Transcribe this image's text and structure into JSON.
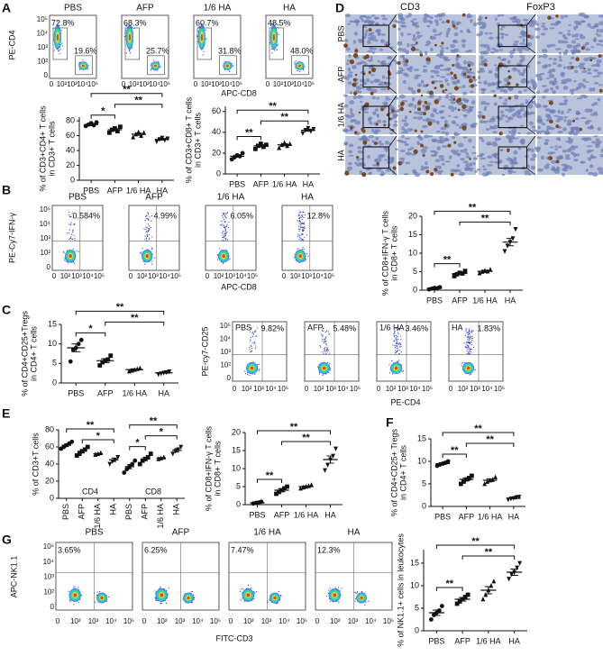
{
  "letters": [
    "A",
    "B",
    "C",
    "D",
    "E",
    "F",
    "G"
  ],
  "flow": {
    "A": {
      "ylabel": "PE-CD4",
      "xlabel": "APC-CD8",
      "xticks": [
        "0",
        "10²",
        "10³",
        "10⁴",
        "10⁵"
      ],
      "yticks": [
        "0",
        "10²",
        "10³",
        "10⁴",
        "10⁵"
      ],
      "plots": [
        {
          "title": "PBS",
          "gates": [
            "72.8%",
            "19.6%"
          ]
        },
        {
          "title": "AFP",
          "gates": [
            "68.3%",
            "25.7%"
          ]
        },
        {
          "title": "1/6 HA",
          "gates": [
            "60.7%",
            "31.8%"
          ]
        },
        {
          "title": "HA",
          "gates": [
            "48.5%",
            "48.0%"
          ]
        }
      ]
    },
    "B": {
      "ylabel": "PE-Cy7-IFN-γ",
      "xlabel": "APC-CD8",
      "xticks": [
        "0",
        "10²",
        "10³",
        "10⁴",
        "10⁵"
      ],
      "yticks": [
        "0",
        "10²",
        "10³",
        "10⁴",
        "10⁵"
      ],
      "plots": [
        {
          "title": "PBS",
          "gates": [
            "0.584%"
          ]
        },
        {
          "title": "AFP",
          "gates": [
            "4.99%"
          ]
        },
        {
          "title": "1/6 HA",
          "gates": [
            "6.05%"
          ]
        },
        {
          "title": "HA",
          "gates": [
            "12.8%"
          ]
        }
      ]
    },
    "C": {
      "ylabel": "PE-cy7-CD25",
      "xlabel": "PE-CD4",
      "xticks": [
        "0",
        "10²",
        "10³",
        "10⁴",
        "10⁵"
      ],
      "yticks": [
        "0",
        "10²",
        "10³",
        "10⁴",
        "10⁵"
      ],
      "plots": [
        {
          "title": "PBS",
          "gates": [
            "9.82%"
          ]
        },
        {
          "title": "AFP",
          "gates": [
            "5.48%"
          ]
        },
        {
          "title": "1/6 HA",
          "gates": [
            "3.46%"
          ]
        },
        {
          "title": "HA",
          "gates": [
            "1.83%"
          ]
        }
      ]
    },
    "G": {
      "ylabel": "APC-NK1.1",
      "xlabel": "FITC-CD3",
      "xticks": [
        "0",
        "10²",
        "10³",
        "10⁴",
        "10⁵"
      ],
      "yticks": [
        "0",
        "10²",
        "10³",
        "10⁴",
        "10⁵"
      ],
      "plots": [
        {
          "title": "PBS",
          "gates": [
            "3.65%"
          ]
        },
        {
          "title": "AFP",
          "gates": [
            "6.25%"
          ]
        },
        {
          "title": "1/6 HA",
          "gates": [
            "7.47%"
          ]
        },
        {
          "title": "HA",
          "gates": [
            "12.3%"
          ]
        }
      ]
    }
  },
  "histology": {
    "columns": [
      "CD3",
      "FoxP3"
    ],
    "rows": [
      "PBS",
      "AFP",
      "1/6 HA",
      "HA"
    ]
  },
  "chart_data": [
    {
      "type": "dot",
      "ylabel": [
        "% of CD3+CD4+ T cells",
        "in CD3+ T cells"
      ],
      "categories": [
        "PBS",
        "AFP",
        "1/6 HA",
        "HA"
      ],
      "values": [
        75,
        68,
        62,
        55
      ],
      "errors": [
        1.5,
        1.5,
        1.5,
        1
      ],
      "points": [
        [
          73,
          75,
          77,
          74,
          78
        ],
        [
          64,
          68,
          70,
          66,
          72
        ],
        [
          58,
          62,
          65,
          60,
          64
        ],
        [
          52,
          55,
          57,
          54,
          56
        ]
      ],
      "ylim": [
        0,
        85
      ],
      "yticks": [
        0,
        20,
        40,
        60,
        80
      ],
      "brackets": [
        {
          "label": "*",
          "between": [
            0,
            1
          ]
        },
        {
          "label": "**",
          "between": [
            1,
            3
          ]
        },
        {
          "label": "**",
          "between": [
            0,
            3
          ]
        }
      ]
    },
    {
      "type": "dot",
      "ylabel": [
        "% of CD3+CD8+ T cells",
        "in CD3+ T cells"
      ],
      "categories": [
        "PBS",
        "AFP",
        "1/6 HA",
        "HA"
      ],
      "values": [
        17,
        27,
        28,
        42
      ],
      "errors": [
        1,
        1,
        1,
        1
      ],
      "points": [
        [
          14,
          16,
          18,
          17,
          20
        ],
        [
          24,
          27,
          29,
          26,
          28
        ],
        [
          25,
          28,
          30,
          27,
          29
        ],
        [
          39,
          42,
          44,
          41,
          43
        ]
      ],
      "ylim": [
        0,
        65
      ],
      "yticks": [
        0,
        20,
        40,
        60
      ],
      "brackets": [
        {
          "label": "**",
          "between": [
            0,
            1
          ]
        },
        {
          "label": "**",
          "between": [
            1,
            3
          ]
        },
        {
          "label": "**",
          "between": [
            0,
            3
          ]
        }
      ]
    },
    {
      "type": "dot",
      "ylabel": [
        "% of CD8+IFN-γ T cells",
        "in CD8+ T cells"
      ],
      "categories": [
        "PBS",
        "AFP",
        "1/6 HA",
        "HA"
      ],
      "values": [
        0.5,
        4.5,
        5.1,
        13
      ],
      "errors": [
        0.1,
        0.3,
        0.3,
        1
      ],
      "points": [
        [
          0.2,
          0.4,
          0.6,
          0.5,
          0.8
        ],
        [
          3.8,
          4.3,
          4.7,
          4.5,
          5.2
        ],
        [
          4.6,
          5,
          5.3,
          5.1,
          5.6
        ],
        [
          10.5,
          12,
          13,
          14,
          16.5
        ]
      ],
      "ylim": [
        0,
        20
      ],
      "yticks": [
        0,
        5,
        10,
        15,
        20
      ],
      "brackets": [
        {
          "label": "**",
          "between": [
            0,
            1
          ]
        },
        {
          "label": "**",
          "between": [
            1,
            3
          ]
        },
        {
          "label": "**",
          "between": [
            0,
            3
          ]
        }
      ]
    },
    {
      "type": "dot",
      "ylabel": [
        "% of CD4+CD25+Tregs",
        "in CD4+ T cells"
      ],
      "categories": [
        "PBS",
        "AFP",
        "1/6 HA",
        "HA"
      ],
      "values": [
        9,
        5.7,
        3.4,
        2.6
      ],
      "errors": [
        1,
        0.5,
        0.2,
        0.1
      ],
      "points": [
        [
          5.5,
          8.5,
          9,
          10,
          11
        ],
        [
          4.5,
          5.3,
          5.8,
          6,
          7
        ],
        [
          3,
          3.2,
          3.4,
          3.6,
          3.8
        ],
        [
          2.2,
          2.4,
          2.6,
          2.7,
          2.9
        ]
      ],
      "ylim": [
        0,
        15
      ],
      "yticks": [
        0,
        5,
        10,
        15
      ],
      "brackets": [
        {
          "label": "*",
          "between": [
            0,
            1
          ]
        },
        {
          "label": "**",
          "between": [
            1,
            3
          ]
        },
        {
          "label": "**",
          "between": [
            0,
            3
          ]
        }
      ]
    },
    {
      "type": "dot",
      "ylabel": [
        "% of CD3+T cells"
      ],
      "categories": [
        "PBS",
        "AFP",
        "1/6 HA",
        "HA",
        "PBS",
        "AFP",
        "1/6 HA",
        "HA"
      ],
      "group_labels": [
        "CD4",
        "CD8"
      ],
      "values": [
        62,
        55,
        52,
        45,
        37,
        46,
        47,
        56
      ],
      "errors": [
        1.5,
        2,
        0.6,
        2,
        2.5,
        2,
        0.6,
        2
      ],
      "points": [
        [
          58,
          60,
          62,
          64,
          66
        ],
        [
          50,
          52,
          55,
          57,
          60
        ],
        [
          51,
          52,
          53
        ],
        [
          40,
          43,
          45,
          48
        ],
        [
          30,
          34,
          37,
          40,
          44
        ],
        [
          40,
          44,
          46,
          48,
          52
        ],
        [
          46,
          47,
          48
        ],
        [
          52,
          55,
          57,
          60
        ]
      ],
      "ylim": [
        0,
        80
      ],
      "yticks": [
        0,
        20,
        40,
        60,
        80
      ],
      "brackets": [
        {
          "label": "*",
          "between": [
            1,
            3
          ]
        },
        {
          "label": "**",
          "between": [
            0,
            3
          ]
        },
        {
          "label": "*",
          "between": [
            4,
            5
          ]
        },
        {
          "label": "*",
          "between": [
            5,
            7
          ]
        },
        {
          "label": "**",
          "between": [
            4,
            7
          ]
        }
      ]
    },
    {
      "type": "dot",
      "ylabel": [
        "% of CD8+IFN-γ T cells",
        "in CD8+ T cells"
      ],
      "categories": [
        "PBS",
        "AFP",
        "1/6 HA",
        "HA"
      ],
      "values": [
        0.5,
        4,
        5,
        12.5
      ],
      "errors": [
        0.1,
        0.4,
        0.2,
        1
      ],
      "points": [
        [
          0.3,
          0.5,
          0.6,
          0.8
        ],
        [
          3,
          3.5,
          4,
          4.5,
          5
        ],
        [
          4.5,
          4.8,
          5,
          5.2,
          5.5
        ],
        [
          9.5,
          11,
          12.5,
          13.5,
          15.5
        ]
      ],
      "ylim": [
        0,
        20
      ],
      "yticks": [
        0,
        5,
        10,
        15,
        20
      ],
      "brackets": [
        {
          "label": "**",
          "between": [
            0,
            1
          ]
        },
        {
          "label": "**",
          "between": [
            1,
            3
          ]
        },
        {
          "label": "**",
          "between": [
            0,
            3
          ]
        }
      ]
    },
    {
      "type": "dot",
      "ylabel": [
        "% of CD4+CD25+ Tregs",
        "in CD4+ T cells"
      ],
      "categories": [
        "PBS",
        "AFP",
        "1/6 HA",
        "HA"
      ],
      "values": [
        9.5,
        6,
        5.8,
        1.8
      ],
      "errors": [
        0.2,
        0.3,
        0.3,
        0.1
      ],
      "points": [
        [
          9,
          9.3,
          9.5,
          9.7,
          10
        ],
        [
          5,
          5.5,
          6,
          6.3,
          6.8
        ],
        [
          5,
          5.5,
          5.8,
          6,
          6.5
        ],
        [
          1.5,
          1.7,
          1.8,
          2,
          2.1
        ]
      ],
      "ylim": [
        0,
        15
      ],
      "yticks": [
        0,
        5,
        10,
        15
      ],
      "brackets": [
        {
          "label": "**",
          "between": [
            0,
            1
          ]
        },
        {
          "label": "**",
          "between": [
            1,
            3
          ]
        },
        {
          "label": "**",
          "between": [
            0,
            3
          ]
        }
      ]
    },
    {
      "type": "dot",
      "ylabel": [
        "% of NK1.1+ cells in leukocytes"
      ],
      "categories": [
        "PBS",
        "AFP",
        "1/6 HA",
        "HA"
      ],
      "values": [
        4,
        7,
        9,
        13
      ],
      "errors": [
        0.6,
        0.4,
        0.8,
        0.7
      ],
      "points": [
        [
          2.5,
          3.5,
          4,
          4.5,
          5.5
        ],
        [
          6,
          6.5,
          7,
          7.5,
          8
        ],
        [
          7,
          8,
          9,
          10,
          11
        ],
        [
          11.5,
          12.5,
          13,
          14,
          15
        ]
      ],
      "ylim": [
        0,
        18
      ],
      "yticks": [
        0,
        5,
        10,
        15
      ],
      "brackets": [
        {
          "label": "**",
          "between": [
            0,
            1
          ]
        },
        {
          "label": "**",
          "between": [
            1,
            3
          ]
        },
        {
          "label": "**",
          "between": [
            0,
            3
          ]
        }
      ]
    }
  ]
}
